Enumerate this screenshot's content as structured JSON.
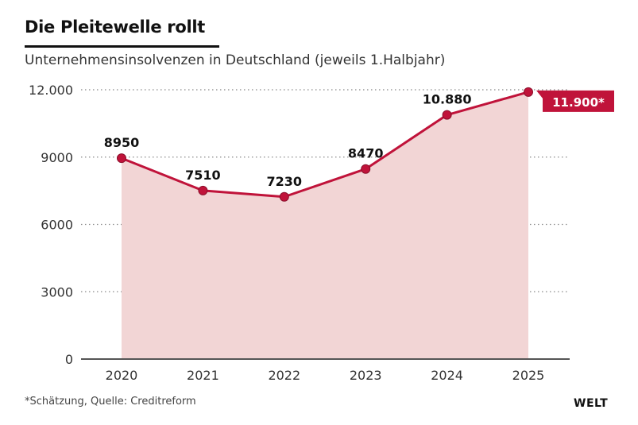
{
  "header": {
    "title": "Die Pleitewelle rollt",
    "subtitle": "Unternehmensinsolvenzen in Deutschland (jeweils 1.Halbjahr)"
  },
  "footer": {
    "footnote": "*Schätzung, Quelle: Creditreform",
    "logo": "WELT"
  },
  "colors": {
    "line": "#c0133a",
    "area": "#f2d5d5",
    "label_bg": "#c0133a"
  },
  "chart_data": {
    "type": "area",
    "title": "Die Pleitewelle rollt",
    "subtitle": "Unternehmensinsolvenzen in Deutschland (jeweils 1.Halbjahr)",
    "xlabel": "",
    "ylabel": "",
    "categories": [
      "2020",
      "2021",
      "2022",
      "2023",
      "2024",
      "2025"
    ],
    "values": [
      8950,
      7510,
      7230,
      8470,
      10880,
      11900
    ],
    "data_labels": [
      "8950",
      "7510",
      "7230",
      "8470",
      "10.880",
      "11.900*"
    ],
    "highlighted_index": 5,
    "ylim": [
      0,
      12000
    ],
    "yticks": [
      0,
      3000,
      6000,
      9000,
      12000
    ],
    "ytick_labels": [
      "0",
      "3000",
      "6000",
      "9000",
      "12.000"
    ],
    "grid": true,
    "legend": "none"
  }
}
